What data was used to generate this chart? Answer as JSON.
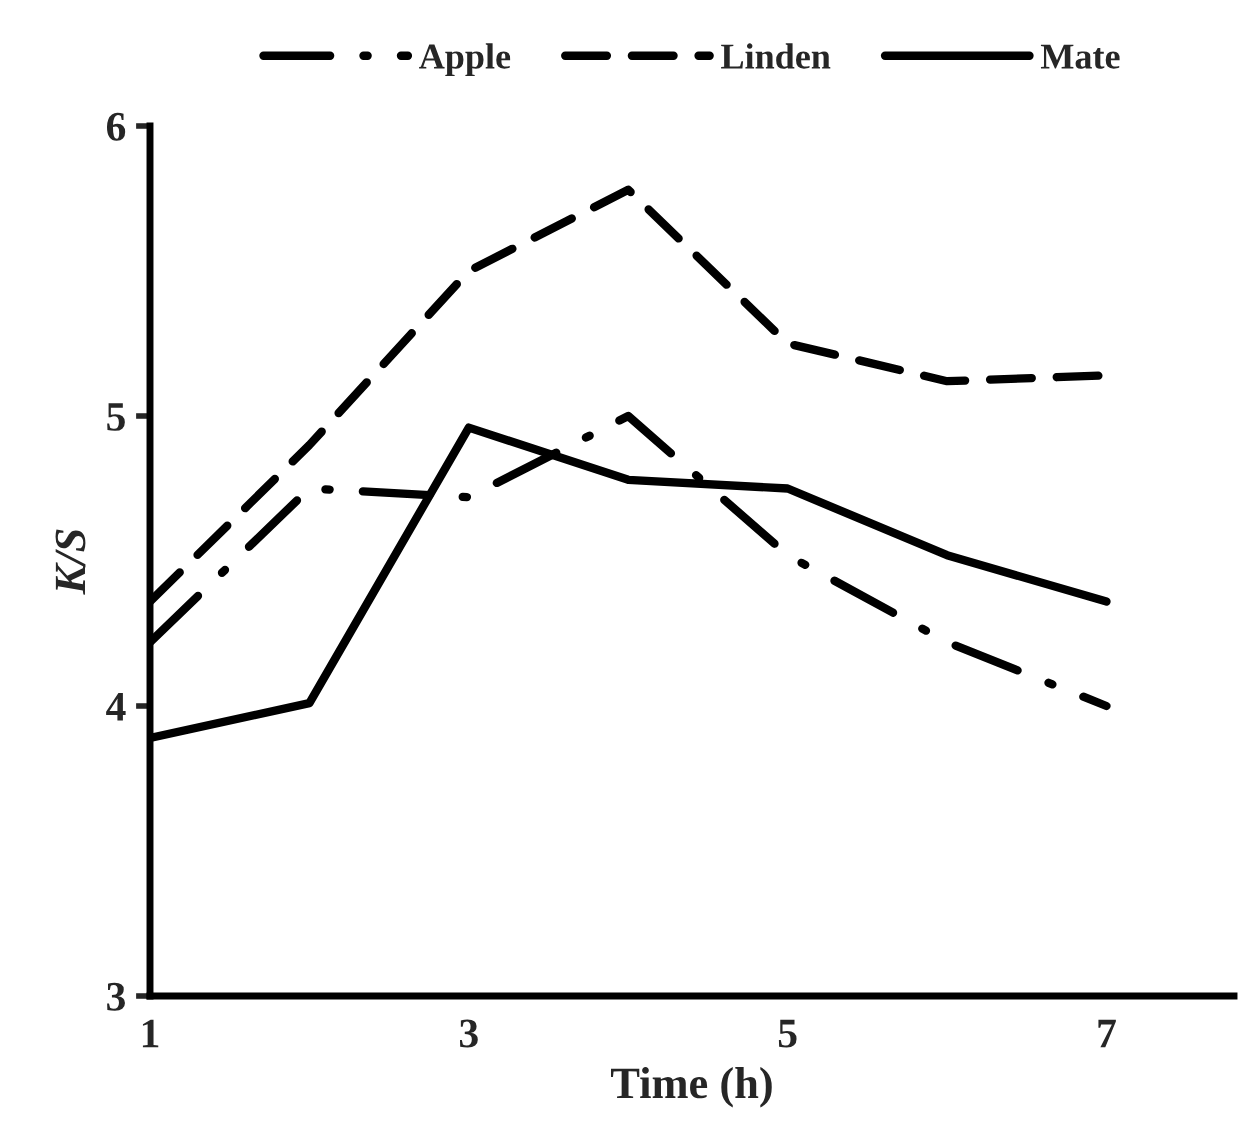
{
  "chart_data": {
    "type": "line",
    "xlabel": "Time (h)",
    "ylabel": "K/S",
    "x": [
      1,
      2,
      3,
      4,
      5,
      6,
      7
    ],
    "series": [
      {
        "name": "Apple",
        "color": "#000000",
        "line_style": "dashdot",
        "values": [
          4.22,
          4.75,
          4.72,
          5.0,
          4.52,
          4.22,
          4.0
        ]
      },
      {
        "name": "Linden",
        "color": "#000000",
        "line_style": "dashed",
        "values": [
          4.36,
          4.9,
          5.5,
          5.78,
          5.25,
          5.12,
          5.14
        ]
      },
      {
        "name": "Mate",
        "color": "#000000",
        "line_style": "solid",
        "values": [
          3.89,
          4.01,
          4.96,
          4.78,
          4.75,
          4.52,
          4.36
        ]
      }
    ],
    "xlim": [
      1,
      7.8
    ],
    "xticks": [
      1,
      3,
      5,
      7
    ],
    "ylim": [
      3,
      6
    ],
    "yticks": [
      3,
      4,
      5,
      6
    ],
    "grid": false,
    "legend": "top",
    "marker": "none"
  }
}
